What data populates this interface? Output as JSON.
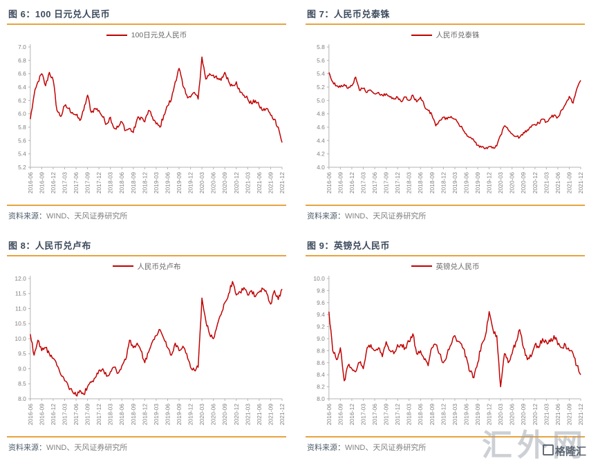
{
  "watermark": {
    "large": "汇外网",
    "small": "格隆汇"
  },
  "panels": [
    {
      "title": "图 6：100 日元兑人民币",
      "legend": "100日元兑人民币",
      "source_prefix": "资料来源：",
      "source_text": "WIND、天风证券研究所"
    },
    {
      "title": "图 7：人民币兑泰铢",
      "legend": "人民币兑泰铢",
      "source_prefix": "资料来源：",
      "source_text": "WIND、天风证券研究所"
    },
    {
      "title": "图 8：人民币兑卢布",
      "legend": "人民币兑卢布",
      "source_prefix": "资料来源：",
      "source_text": "WIND、天风证券研究所"
    },
    {
      "title": "图 9：英镑兑人民币",
      "legend": "英镑兑人民币",
      "source_prefix": "资料来源：",
      "source_text": "WIND、天风证券研究所"
    }
  ],
  "chart_data": [
    {
      "type": "line",
      "title": "100 日元兑人民币",
      "legend": "100日元兑人民币",
      "line_color": "#c00000",
      "grid": false,
      "legend_position": "top-center",
      "x_start": "2016-06",
      "x_freq": "monthly",
      "x_labels": [
        "2016-06",
        "2016-09",
        "2016-12",
        "2017-03",
        "2017-06",
        "2017-09",
        "2017-12",
        "2018-03",
        "2018-06",
        "2018-09",
        "2018-12",
        "2019-03",
        "2019-06",
        "2019-09",
        "2019-12",
        "2020-03",
        "2020-06",
        "2020-09",
        "2020-12",
        "2021-03",
        "2021-06",
        "2021-09",
        "2021-12"
      ],
      "ylim": [
        5.2,
        7.0
      ],
      "ytick_step": 0.2,
      "jitter": 0.035,
      "values": [
        5.92,
        6.28,
        6.48,
        6.6,
        6.42,
        6.62,
        6.5,
        6.05,
        5.96,
        6.12,
        6.08,
        6.02,
        5.98,
        5.9,
        6.05,
        6.28,
        6.02,
        6.08,
        6.05,
        5.95,
        5.85,
        5.95,
        5.78,
        5.8,
        5.88,
        5.75,
        5.78,
        5.72,
        5.92,
        5.95,
        5.88,
        6.05,
        5.95,
        5.85,
        5.8,
        5.98,
        6.12,
        6.22,
        6.48,
        6.68,
        6.42,
        6.28,
        6.25,
        6.32,
        6.22,
        6.85,
        6.52,
        6.6,
        6.58,
        6.52,
        6.5,
        6.62,
        6.48,
        6.42,
        6.48,
        6.32,
        6.28,
        6.22,
        6.15,
        6.2,
        6.12,
        6.05,
        6.08,
        5.98,
        5.92,
        5.8,
        5.57
      ]
    },
    {
      "type": "line",
      "title": "人民币兑泰铢",
      "legend": "人民币兑泰铢",
      "line_color": "#c00000",
      "grid": false,
      "legend_position": "top-center",
      "x_start": "2016-06",
      "x_freq": "monthly",
      "x_labels": [
        "2016-06",
        "2016-09",
        "2016-12",
        "2017-03",
        "2017-06",
        "2017-09",
        "2017-12",
        "2018-03",
        "2018-06",
        "2018-09",
        "2018-12",
        "2019-03",
        "2019-06",
        "2019-09",
        "2019-12",
        "2020-03",
        "2020-06",
        "2020-09",
        "2020-12",
        "2021-03",
        "2021-06",
        "2021-09",
        "2021-12"
      ],
      "ylim": [
        4.0,
        5.8
      ],
      "ytick_step": 0.2,
      "jitter": 0.022,
      "values": [
        5.42,
        5.28,
        5.22,
        5.2,
        5.24,
        5.18,
        5.22,
        5.35,
        5.15,
        5.18,
        5.12,
        5.15,
        5.1,
        5.12,
        5.08,
        5.1,
        5.05,
        5.02,
        5.05,
        4.98,
        5.05,
        5.0,
        5.08,
        4.98,
        5.05,
        4.92,
        4.85,
        4.78,
        4.62,
        4.7,
        4.75,
        4.72,
        4.76,
        4.72,
        4.65,
        4.58,
        4.5,
        4.45,
        4.4,
        4.33,
        4.3,
        4.28,
        4.31,
        4.3,
        4.32,
        4.48,
        4.62,
        4.56,
        4.5,
        4.46,
        4.45,
        4.52,
        4.56,
        4.6,
        4.64,
        4.66,
        4.72,
        4.68,
        4.74,
        4.78,
        4.75,
        4.86,
        4.94,
        5.06,
        4.96,
        5.18,
        5.3
      ]
    },
    {
      "type": "line",
      "title": "人民币兑卢布",
      "legend": "人民币兑卢布",
      "line_color": "#c00000",
      "grid": false,
      "legend_position": "top-center",
      "x_start": "2016-06",
      "x_freq": "monthly",
      "x_labels": [
        "2016-06",
        "2016-09",
        "2016-12",
        "2017-03",
        "2017-06",
        "2017-09",
        "2017-12",
        "2018-03",
        "2018-06",
        "2018-09",
        "2018-12",
        "2019-03",
        "2019-06",
        "2019-09",
        "2019-12",
        "2020-03",
        "2020-06",
        "2020-09",
        "2020-12",
        "2021-03",
        "2021-06",
        "2021-09",
        "2021-12"
      ],
      "ylim": [
        8.0,
        12.0
      ],
      "ytick_step": 0.5,
      "jitter": 0.07,
      "values": [
        10.15,
        9.45,
        9.95,
        9.6,
        9.7,
        9.5,
        9.35,
        9.1,
        8.8,
        8.6,
        8.4,
        8.25,
        8.12,
        8.28,
        8.15,
        8.4,
        8.55,
        8.7,
        8.95,
        9.0,
        8.75,
        8.9,
        9.05,
        8.85,
        9.1,
        9.3,
        9.95,
        9.7,
        9.85,
        9.6,
        9.2,
        9.55,
        9.9,
        10.1,
        10.3,
        10.0,
        9.7,
        9.45,
        9.85,
        9.6,
        9.75,
        9.5,
        9.05,
        8.95,
        9.05,
        11.35,
        10.6,
        10.15,
        10.0,
        10.45,
        10.8,
        11.2,
        11.5,
        11.9,
        11.45,
        11.55,
        11.7,
        11.45,
        11.6,
        11.4,
        11.55,
        11.65,
        11.5,
        11.15,
        11.6,
        11.3,
        11.65
      ]
    },
    {
      "type": "line",
      "title": "英镑兑人民币",
      "legend": "英镑兑人民币",
      "line_color": "#c00000",
      "grid": false,
      "legend_position": "top-center",
      "x_start": "2016-06",
      "x_freq": "monthly",
      "x_labels": [
        "2016-06",
        "2016-09",
        "2016-12",
        "2017-03",
        "2017-06",
        "2017-09",
        "2017-12",
        "2018-03",
        "2018-06",
        "2018-09",
        "2018-12",
        "2019-03",
        "2019-06",
        "2019-09",
        "2019-12",
        "2020-03",
        "2020-06",
        "2020-09",
        "2020-12",
        "2021-03",
        "2021-06",
        "2021-09",
        "2021-12"
      ],
      "ylim": [
        8.0,
        10.0
      ],
      "ytick_step": 0.2,
      "jitter": 0.045,
      "values": [
        9.45,
        8.8,
        8.65,
        8.85,
        8.3,
        8.55,
        8.5,
        8.45,
        8.6,
        8.5,
        8.85,
        8.9,
        8.8,
        8.85,
        8.7,
        8.95,
        8.8,
        8.75,
        8.9,
        8.9,
        8.85,
        8.95,
        9.08,
        8.75,
        8.8,
        8.65,
        8.55,
        8.85,
        8.9,
        8.75,
        8.6,
        8.75,
        8.9,
        9.05,
        8.95,
        8.85,
        8.7,
        8.45,
        8.35,
        8.6,
        8.9,
        9.05,
        9.45,
        9.15,
        9.05,
        8.2,
        8.75,
        8.6,
        8.75,
        8.95,
        9.15,
        8.85,
        8.65,
        8.7,
        8.9,
        8.85,
        9.0,
        8.95,
        8.95,
        9.05,
        8.9,
        8.85,
        8.9,
        8.8,
        8.75,
        8.55,
        8.4
      ]
    }
  ]
}
